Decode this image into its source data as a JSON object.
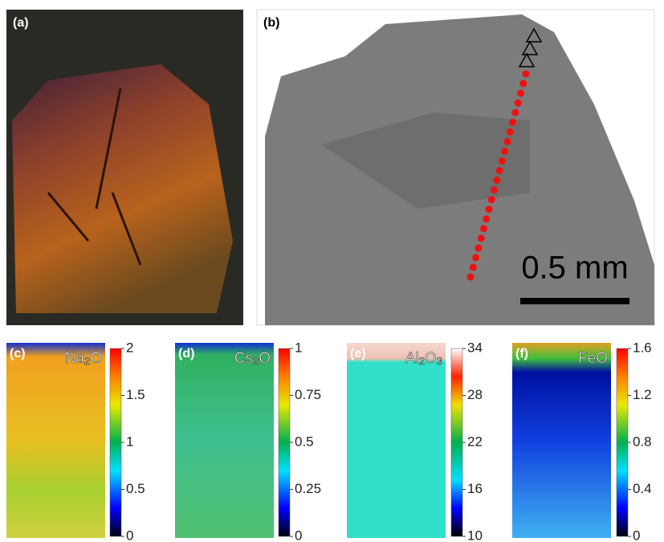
{
  "panels": {
    "a": {
      "label": "(a)"
    },
    "b": {
      "label": "(b)",
      "scale_bar": "0.5 mm"
    },
    "maps": [
      {
        "label": "(c)",
        "formula": {
          "main": "Na",
          "sub": "2",
          "end": "O"
        },
        "range": [
          0,
          2
        ],
        "ticks": [
          0,
          0.5,
          1,
          1.5,
          2
        ]
      },
      {
        "label": "(d)",
        "formula": {
          "main": "Cs",
          "sub": "2",
          "end": "O"
        },
        "range": [
          0,
          1
        ],
        "ticks": [
          0,
          0.25,
          0.5,
          0.75,
          1
        ]
      },
      {
        "label": "(e)",
        "formula": {
          "main": "Al",
          "sub": "2",
          "end": "O",
          "end_sub": "3"
        },
        "range": [
          10,
          34
        ],
        "ticks": [
          10,
          16,
          22,
          28,
          34
        ]
      },
      {
        "label": "(f)",
        "formula": {
          "main": "FeO"
        },
        "range": [
          0,
          1.6
        ],
        "ticks": [
          0,
          0.4,
          0.8,
          1.2,
          1.6
        ]
      }
    ]
  }
}
